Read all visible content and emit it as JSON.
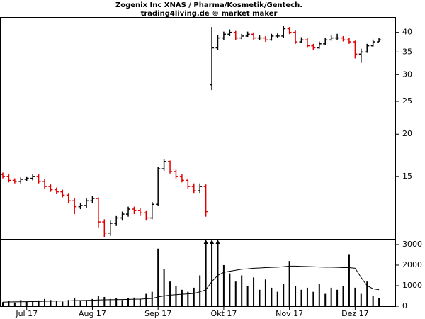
{
  "chart_data": [
    {
      "type": "ohlc",
      "title": "Zogenix Inc XNAS / Pharma/Kosmetik/Gentech.",
      "subtitle": "trading4living.de © market maker",
      "categories": [
        null,
        null,
        null,
        null,
        "Jul 17",
        null,
        null,
        null,
        null,
        null,
        null,
        null,
        null,
        null,
        null,
        "Aug 17",
        null,
        null,
        null,
        null,
        null,
        null,
        null,
        null,
        null,
        null,
        "Sep 17",
        null,
        null,
        null,
        null,
        null,
        null,
        null,
        null,
        null,
        null,
        "Okt 17",
        null,
        null,
        null,
        null,
        null,
        null,
        null,
        null,
        null,
        null,
        "Nov 17",
        null,
        null,
        null,
        null,
        null,
        null,
        null,
        null,
        null,
        null,
        "Dez 17",
        null,
        null,
        null,
        null
      ],
      "open": [
        15.2,
        15.0,
        14.6,
        14.5,
        14.7,
        14.8,
        15.0,
        14.5,
        14.0,
        13.7,
        13.5,
        13.2,
        12.7,
        12.2,
        12.3,
        12.7,
        12.9,
        11.0,
        10.2,
        10.9,
        11.3,
        11.6,
        12.0,
        11.9,
        11.7,
        11.3,
        12.4,
        15.8,
        16.6,
        15.5,
        15.0,
        14.6,
        14.0,
        13.6,
        14.0,
        28.0,
        36.0,
        38.5,
        39.5,
        40.0,
        38.5,
        39.0,
        39.5,
        38.5,
        38.5,
        38.0,
        39.0,
        39.0,
        41.0,
        40.0,
        37.5,
        38.0,
        36.5,
        36.0,
        37.0,
        38.0,
        38.5,
        38.5,
        38.0,
        37.5,
        34.5,
        35.0,
        36.5,
        37.5
      ],
      "high": [
        15.4,
        15.2,
        14.8,
        14.9,
        15.0,
        15.2,
        15.2,
        14.7,
        14.2,
        13.9,
        13.7,
        13.4,
        12.9,
        12.5,
        12.9,
        13.1,
        13.0,
        11.2,
        11.1,
        11.5,
        11.8,
        12.2,
        12.2,
        12.1,
        11.9,
        12.6,
        16.0,
        16.9,
        16.7,
        15.7,
        15.2,
        14.8,
        14.3,
        14.3,
        14.2,
        41.5,
        39.2,
        40.2,
        40.8,
        40.4,
        39.6,
        40.2,
        40.0,
        39.2,
        39.0,
        39.6,
        39.7,
        41.8,
        41.5,
        40.5,
        38.7,
        38.5,
        37.0,
        37.6,
        38.6,
        39.2,
        39.6,
        39.0,
        38.5,
        37.8,
        35.8,
        37.0,
        38.1,
        38.6
      ],
      "low": [
        14.8,
        14.4,
        14.3,
        14.3,
        14.5,
        14.6,
        14.3,
        13.8,
        13.5,
        13.3,
        13.0,
        12.5,
        11.6,
        12.0,
        12.1,
        12.5,
        10.6,
        9.9,
        10.0,
        10.7,
        11.1,
        11.4,
        11.6,
        11.5,
        11.1,
        11.2,
        12.3,
        15.6,
        15.3,
        14.8,
        14.4,
        13.8,
        13.4,
        13.4,
        11.4,
        27.0,
        35.5,
        38.0,
        39.0,
        38.0,
        38.2,
        38.8,
        38.0,
        38.0,
        37.5,
        37.8,
        38.5,
        38.6,
        39.5,
        37.0,
        37.2,
        36.0,
        35.5,
        35.8,
        36.8,
        37.8,
        38.0,
        37.6,
        37.0,
        33.5,
        32.5,
        34.8,
        36.3,
        37.5
      ],
      "close": [
        15.0,
        14.6,
        14.5,
        14.7,
        14.8,
        15.0,
        14.5,
        14.0,
        13.7,
        13.5,
        13.2,
        12.7,
        12.2,
        12.3,
        12.7,
        12.9,
        11.0,
        10.2,
        10.9,
        11.3,
        11.6,
        12.0,
        11.9,
        11.7,
        11.3,
        12.4,
        15.8,
        16.6,
        15.5,
        15.0,
        14.6,
        14.0,
        13.6,
        14.0,
        11.8,
        36.0,
        38.5,
        39.5,
        40.0,
        38.5,
        39.0,
        39.5,
        38.5,
        38.5,
        38.0,
        39.0,
        39.0,
        41.0,
        40.0,
        37.5,
        38.0,
        36.5,
        36.0,
        37.0,
        38.0,
        38.5,
        38.5,
        38.0,
        37.5,
        34.5,
        35.0,
        36.5,
        37.5,
        38.0
      ],
      "up_color": "#000000",
      "down_color": "#e00000",
      "ylim": [
        9.8,
        44.2
      ],
      "yticks": [
        15,
        20,
        25,
        30,
        35,
        40
      ],
      "log_scale": true
    },
    {
      "type": "bar",
      "values": [
        200,
        250,
        180,
        300,
        220,
        260,
        280,
        350,
        300,
        250,
        220,
        300,
        400,
        250,
        300,
        350,
        500,
        450,
        350,
        400,
        300,
        380,
        420,
        350,
        600,
        700,
        2800,
        1800,
        1200,
        1000,
        800,
        700,
        900,
        1500,
        3300,
        3500,
        3400,
        2000,
        1600,
        1200,
        1500,
        1000,
        1400,
        800,
        1300,
        900,
        700,
        1100,
        2200,
        1000,
        800,
        900,
        700,
        1100,
        600,
        900,
        800,
        1000,
        2500,
        900,
        600,
        1200,
        500,
        400
      ],
      "color": "#000000",
      "average": [
        200,
        205,
        210,
        215,
        220,
        225,
        230,
        240,
        245,
        250,
        255,
        260,
        270,
        275,
        280,
        290,
        300,
        310,
        315,
        320,
        325,
        330,
        340,
        345,
        360,
        380,
        450,
        500,
        540,
        560,
        580,
        600,
        620,
        700,
        800,
        1200,
        1500,
        1650,
        1700,
        1750,
        1800,
        1820,
        1850,
        1860,
        1880,
        1890,
        1900,
        1920,
        1950,
        1950,
        1940,
        1930,
        1920,
        1910,
        1900,
        1900,
        1890,
        1880,
        1880,
        1850,
        1400,
        1000,
        850,
        800
      ],
      "average_color": "#000000",
      "ylim": [
        0,
        3240
      ],
      "yticks": [
        0,
        1000,
        2000,
        3000
      ]
    }
  ]
}
